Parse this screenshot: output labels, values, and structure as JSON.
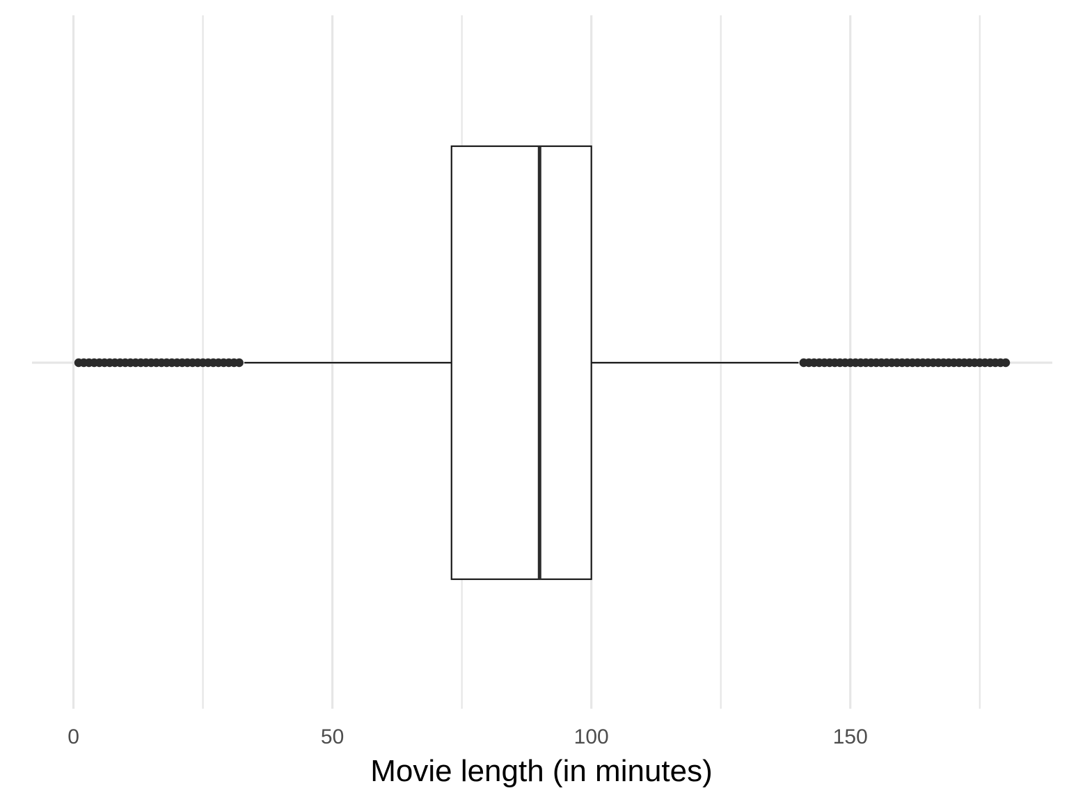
{
  "chart_data": {
    "type": "boxplot",
    "orientation": "horizontal",
    "title": "",
    "xlabel": "Movie length (in minutes)",
    "ylabel": "",
    "xlim": [
      -8,
      189
    ],
    "x_ticks": [
      0,
      50,
      100,
      150
    ],
    "x_tick_labels": [
      "0",
      "50",
      "100",
      "150"
    ],
    "x_minor_gridlines": [
      25,
      75,
      125,
      175
    ],
    "grid": true,
    "legend": "none",
    "box": {
      "q1": 73,
      "median": 90,
      "q3": 100,
      "whisker_low": 33,
      "whisker_high": 140,
      "outliers_low": [
        1,
        2,
        3,
        4,
        5,
        6,
        7,
        8,
        9,
        10,
        11,
        12,
        13,
        14,
        15,
        16,
        17,
        18,
        19,
        20,
        21,
        22,
        23,
        24,
        25,
        26,
        27,
        28,
        29,
        30,
        31,
        32
      ],
      "outliers_high": [
        141,
        142,
        143,
        144,
        145,
        146,
        147,
        148,
        149,
        150,
        151,
        152,
        153,
        154,
        155,
        156,
        157,
        158,
        159,
        160,
        161,
        162,
        163,
        164,
        165,
        166,
        167,
        168,
        169,
        170,
        171,
        172,
        173,
        174,
        175,
        176,
        177,
        178,
        179,
        180
      ]
    },
    "colors": {
      "box_fill": "#ffffff",
      "box_stroke": "#1a1a1a",
      "median_stroke": "#2b2b2b",
      "outlier": "#2b2b2b",
      "grid": "#e6e6e6"
    }
  }
}
